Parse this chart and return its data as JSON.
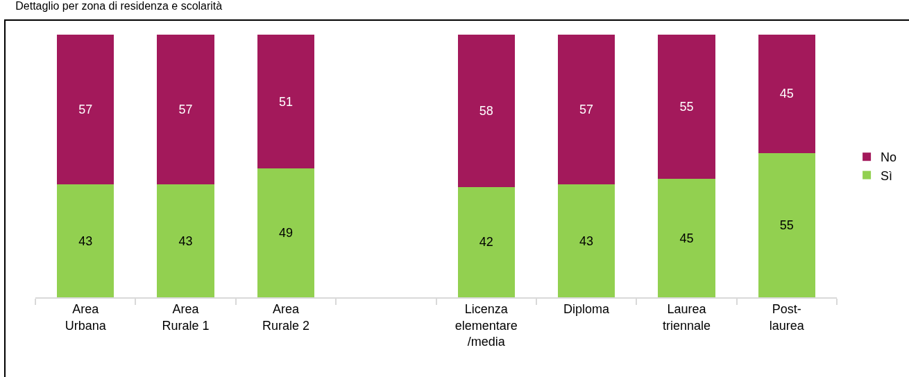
{
  "chart_data": {
    "type": "bar",
    "title": "Dettaglio per zona di residenza e scolarità",
    "categories": [
      "Area Urbana",
      "Area Rurale 1",
      "Area Rurale 2",
      null,
      "Licenza elementare /media",
      "Diploma",
      "Laurea triennale",
      "Post-laurea"
    ],
    "series": [
      {
        "name": "Sì",
        "color": "#92d050",
        "values": [
          43,
          43,
          49,
          null,
          42,
          43,
          45,
          55
        ]
      },
      {
        "name": "No",
        "color": "#a3195b",
        "values": [
          57,
          57,
          51,
          null,
          58,
          57,
          55,
          45
        ]
      }
    ],
    "stacked": true,
    "data_labels": true,
    "ylim": [
      0,
      100
    ],
    "tick_labels": "x",
    "grid": false,
    "legend": "right"
  }
}
